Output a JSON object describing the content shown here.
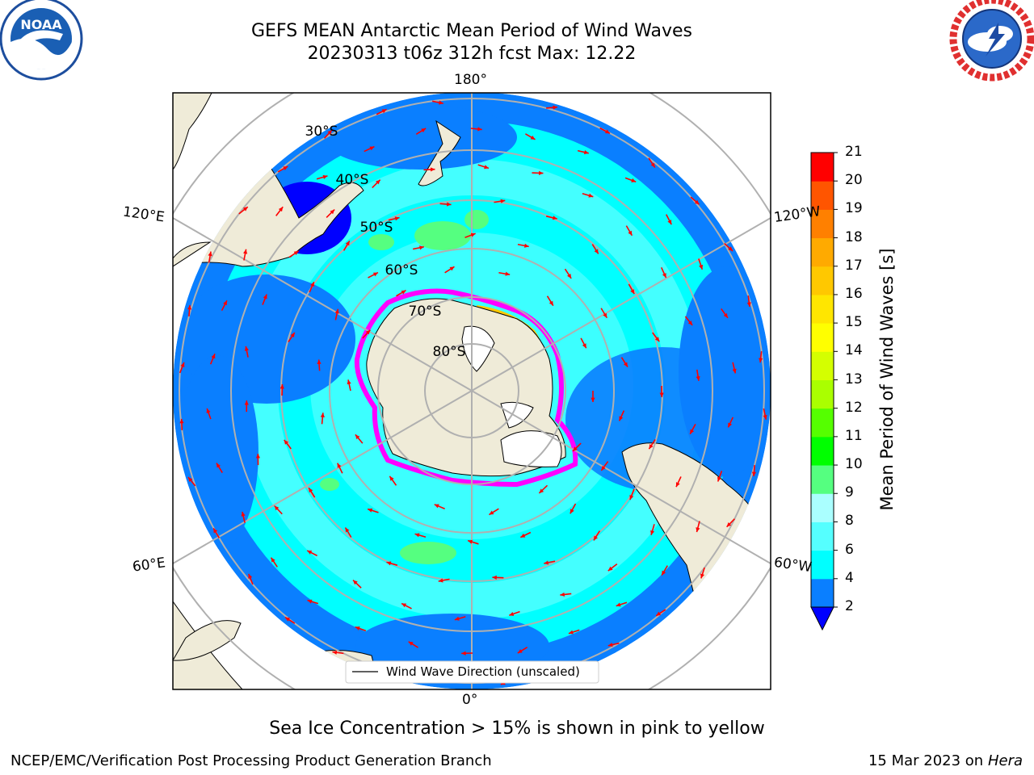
{
  "header": {
    "title_line1": "GEFS MEAN Antarctic Mean Period of Wind Waves",
    "title_line2": "20230313 t06z 312h fcst   Max: 12.22"
  },
  "logos": {
    "left": {
      "name": "NOAA",
      "ring_text": "NATIONAL OCEANIC AND ATMOSPHERIC ADMINISTRATION · U.S. DEPARTMENT OF COMMERCE"
    },
    "right": {
      "name": "NATIONAL WEATHER SERVICE"
    }
  },
  "map": {
    "lon_labels": {
      "top": "180°",
      "bottom": "0°",
      "upper_left": "120°E",
      "upper_right": "120°W",
      "lower_left": "60°E",
      "lower_right": "60°W"
    },
    "lat_labels": [
      "30°S",
      "40°S",
      "50°S",
      "60°S",
      "70°S",
      "80°S"
    ],
    "legend": "Wind Wave Direction (unscaled)",
    "colors": {
      "land": "#efebd8",
      "ice_shelf": "#ffffff",
      "ocean_2_4": "#0a7fff",
      "ocean_4_6": "#00ffff",
      "ocean_6_8": "#55ffff",
      "ocean_8_9": "#aaffff",
      "ocean_9_10": "#55ff80",
      "arrow": "#ff0000",
      "ice_edge": "#ff00ff"
    }
  },
  "colorbar": {
    "title": "Mean Period of Wind Waves [s]",
    "ticks": [
      "2",
      "4",
      "6",
      "8",
      "9",
      "10",
      "11",
      "12",
      "13",
      "14",
      "15",
      "16",
      "17",
      "18",
      "19",
      "20",
      "21"
    ],
    "colors": [
      "#0a7fff",
      "#00ffff",
      "#55ffff",
      "#aaffff",
      "#55ff80",
      "#00ff00",
      "#55ff00",
      "#aaff00",
      "#d4ff00",
      "#ffff00",
      "#ffe600",
      "#ffc800",
      "#ffaa00",
      "#ff8000",
      "#ff5500",
      "#ff0000"
    ],
    "extend_color": "#0000ff"
  },
  "notes": {
    "sea_ice": "Sea Ice Concentration > 15% is shown in pink to yellow"
  },
  "footer": {
    "left": "NCEP/EMC/Verification Post Processing Product Generation Branch",
    "right_date": "15 Mar 2023 on",
    "right_host": "Hera"
  }
}
